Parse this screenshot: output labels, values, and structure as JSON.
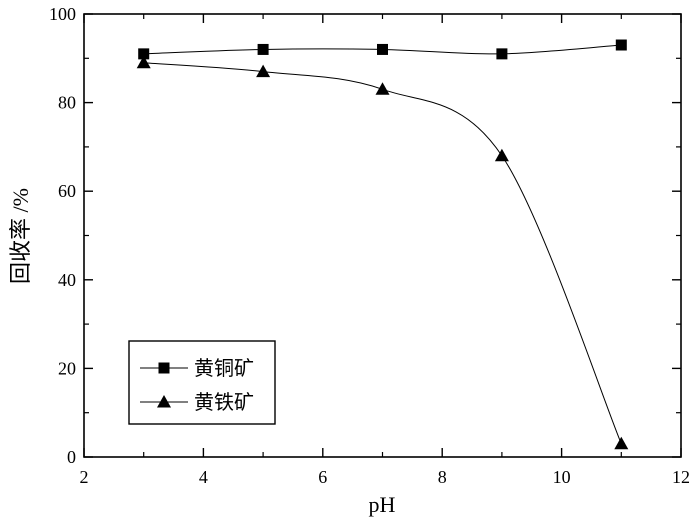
{
  "chart_data": {
    "type": "scatter",
    "xlabel": "pH",
    "ylabel": "回收率 /%",
    "xlim": [
      2,
      12
    ],
    "ylim": [
      0,
      100
    ],
    "x_ticks": [
      2,
      4,
      6,
      8,
      10,
      12
    ],
    "y_ticks": [
      0,
      20,
      40,
      60,
      80,
      100
    ],
    "grid": false,
    "legend_position": "lower-left",
    "series": [
      {
        "name": "黄铜矿",
        "marker": "square",
        "color": "#000000",
        "x": [
          3,
          5,
          7,
          9,
          11
        ],
        "y": [
          91,
          92,
          92,
          91,
          93
        ]
      },
      {
        "name": "黄铁矿",
        "marker": "triangle",
        "color": "#000000",
        "x": [
          3,
          5,
          7,
          9,
          11
        ],
        "y": [
          89,
          87,
          83,
          68,
          3
        ]
      }
    ]
  }
}
